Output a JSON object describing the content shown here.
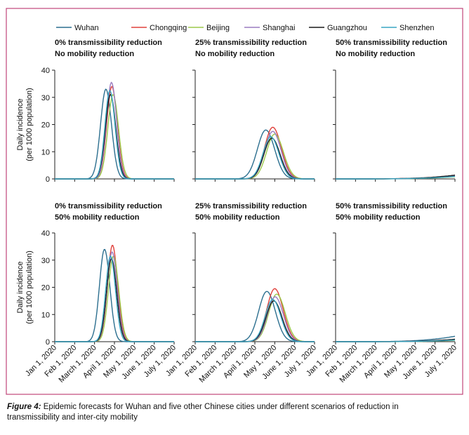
{
  "colors": {
    "Wuhan": "#2c6f8f",
    "Chongqing": "#e0413c",
    "Beijing": "#9cc84a",
    "Shanghai": "#9a7cc0",
    "Guangzhou": "#1a1a1a",
    "Shenzhen": "#39a6c4",
    "frame": "#c0457a"
  },
  "legend": [
    "Wuhan",
    "Chongqing",
    "Beijing",
    "Shanghai",
    "Guangzhou",
    "Shenzhen"
  ],
  "caption": {
    "label": "Figure 4:",
    "line1": " Epidemic forecasts for Wuhan and five other Chinese cities under different scenarios of reduction in",
    "line2": "transmissibility and inter-city mobility"
  },
  "chart_data": [
    {
      "type": "line",
      "title": [
        "0% transmissibility reduction",
        "No mobility reduction"
      ],
      "ylabel": [
        "Daily incidence",
        "(per 1000 population)"
      ],
      "ylim": [
        0,
        40
      ],
      "yticks": [
        0,
        10,
        20,
        30,
        40
      ],
      "xticks": [
        "Jan 1, 2020",
        "Feb 1, 2020",
        "March 1, 2020",
        "April 1, 2020",
        "May 1, 2020",
        "June 1, 2020",
        "July 1, 2020"
      ],
      "series": [
        {
          "name": "Wuhan",
          "peak_x": 2.57,
          "peak_y": 33,
          "width": 0.38
        },
        {
          "name": "Chongqing",
          "peak_x": 2.87,
          "peak_y": 34,
          "width": 0.36
        },
        {
          "name": "Beijing",
          "peak_x": 2.93,
          "peak_y": 31,
          "width": 0.37
        },
        {
          "name": "Shanghai",
          "peak_x": 2.85,
          "peak_y": 35.5,
          "width": 0.35
        },
        {
          "name": "Guangzhou",
          "peak_x": 2.8,
          "peak_y": 31,
          "width": 0.36
        },
        {
          "name": "Shenzhen",
          "peak_x": 2.77,
          "peak_y": 32.5,
          "width": 0.35
        }
      ]
    },
    {
      "type": "line",
      "title": [
        "25% transmissibility reduction",
        "No mobility reduction"
      ],
      "ylim": [
        0,
        40
      ],
      "yticks": [
        0,
        10,
        20,
        30,
        40
      ],
      "xticks": [
        "Jan 1, 2020",
        "Feb 1, 2020",
        "March 1, 2020",
        "April 1, 2020",
        "May 1, 2020",
        "June 1, 2020",
        "July 1, 2020"
      ],
      "series": [
        {
          "name": "Wuhan",
          "peak_x": 3.55,
          "peak_y": 18,
          "width": 0.6
        },
        {
          "name": "Chongqing",
          "peak_x": 3.9,
          "peak_y": 19,
          "width": 0.58
        },
        {
          "name": "Beijing",
          "peak_x": 4.0,
          "peak_y": 16.5,
          "width": 0.58
        },
        {
          "name": "Shanghai",
          "peak_x": 3.9,
          "peak_y": 17.5,
          "width": 0.56
        },
        {
          "name": "Guangzhou",
          "peak_x": 3.85,
          "peak_y": 15,
          "width": 0.56
        },
        {
          "name": "Shenzhen",
          "peak_x": 3.8,
          "peak_y": 15.5,
          "width": 0.55
        }
      ]
    },
    {
      "type": "line",
      "title": [
        "50% transmissibility reduction",
        "No mobility reduction"
      ],
      "ylim": [
        0,
        40
      ],
      "yticks": [
        0,
        10,
        20,
        30,
        40
      ],
      "xticks": [
        "Jan 1, 2020",
        "Feb 1, 2020",
        "March 1, 2020",
        "April 1, 2020",
        "May 1, 2020",
        "June 1, 2020",
        "July 1, 2020"
      ],
      "series": [
        {
          "name": "Wuhan",
          "end_y": 1.0
        },
        {
          "name": "Chongqing",
          "end_y": 1.2
        },
        {
          "name": "Beijing",
          "end_y": 0.8
        },
        {
          "name": "Shanghai",
          "end_y": 1.1
        },
        {
          "name": "Guangzhou",
          "end_y": 1.4
        },
        {
          "name": "Shenzhen",
          "end_y": 0.9
        }
      ]
    },
    {
      "type": "line",
      "title": [
        "0% transmissibility reduction",
        "50% mobility reduction"
      ],
      "ylabel": [
        "Daily incidence",
        "(per 1000 population)"
      ],
      "ylim": [
        0,
        40
      ],
      "yticks": [
        0,
        10,
        20,
        30,
        40
      ],
      "xticks": [
        "Jan 1, 2020",
        "Feb 1, 2020",
        "March 1, 2020",
        "April 1, 2020",
        "May 1, 2020",
        "June 1, 2020",
        "July 1, 2020"
      ],
      "series": [
        {
          "name": "Wuhan",
          "peak_x": 2.5,
          "peak_y": 34,
          "width": 0.36
        },
        {
          "name": "Chongqing",
          "peak_x": 2.9,
          "peak_y": 35.5,
          "width": 0.35
        },
        {
          "name": "Beijing",
          "peak_x": 2.95,
          "peak_y": 31.5,
          "width": 0.36
        },
        {
          "name": "Shanghai",
          "peak_x": 2.88,
          "peak_y": 33,
          "width": 0.35
        },
        {
          "name": "Guangzhou",
          "peak_x": 2.85,
          "peak_y": 30.5,
          "width": 0.35
        },
        {
          "name": "Shenzhen",
          "peak_x": 2.8,
          "peak_y": 31.5,
          "width": 0.34
        }
      ]
    },
    {
      "type": "line",
      "title": [
        "25% transmissibility reduction",
        "50% mobility reduction"
      ],
      "ylim": [
        0,
        40
      ],
      "yticks": [
        0,
        10,
        20,
        30,
        40
      ],
      "xticks": [
        "Jan 1, 2020",
        "Feb 1, 2020",
        "March 1, 2020",
        "April 1, 2020",
        "May 1, 2020",
        "June 1, 2020",
        "July 1, 2020"
      ],
      "series": [
        {
          "name": "Wuhan",
          "peak_x": 3.6,
          "peak_y": 18.5,
          "width": 0.58
        },
        {
          "name": "Chongqing",
          "peak_x": 4.0,
          "peak_y": 19.5,
          "width": 0.57
        },
        {
          "name": "Beijing",
          "peak_x": 4.1,
          "peak_y": 17.5,
          "width": 0.57
        },
        {
          "name": "Shanghai",
          "peak_x": 4.02,
          "peak_y": 16.5,
          "width": 0.55
        },
        {
          "name": "Guangzhou",
          "peak_x": 3.95,
          "peak_y": 15,
          "width": 0.55
        },
        {
          "name": "Shenzhen",
          "peak_x": 3.9,
          "peak_y": 15.5,
          "width": 0.54
        }
      ]
    },
    {
      "type": "line",
      "title": [
        "50% transmissibility reduction",
        "50% mobility reduction"
      ],
      "ylim": [
        0,
        40
      ],
      "yticks": [
        0,
        10,
        20,
        30,
        40
      ],
      "xticks": [
        "Jan 1, 2020",
        "Feb 1, 2020",
        "March 1, 2020",
        "April 1, 2020",
        "May 1, 2020",
        "June 1, 2020",
        "July 1, 2020"
      ],
      "series": [
        {
          "name": "Wuhan",
          "end_y": 2.0
        },
        {
          "name": "Chongqing",
          "end_y": 0.8
        },
        {
          "name": "Beijing",
          "end_y": 0.5
        },
        {
          "name": "Shanghai",
          "end_y": 0.7
        },
        {
          "name": "Guangzhou",
          "end_y": 0.9
        },
        {
          "name": "Shenzhen",
          "end_y": 0.6
        }
      ]
    }
  ]
}
